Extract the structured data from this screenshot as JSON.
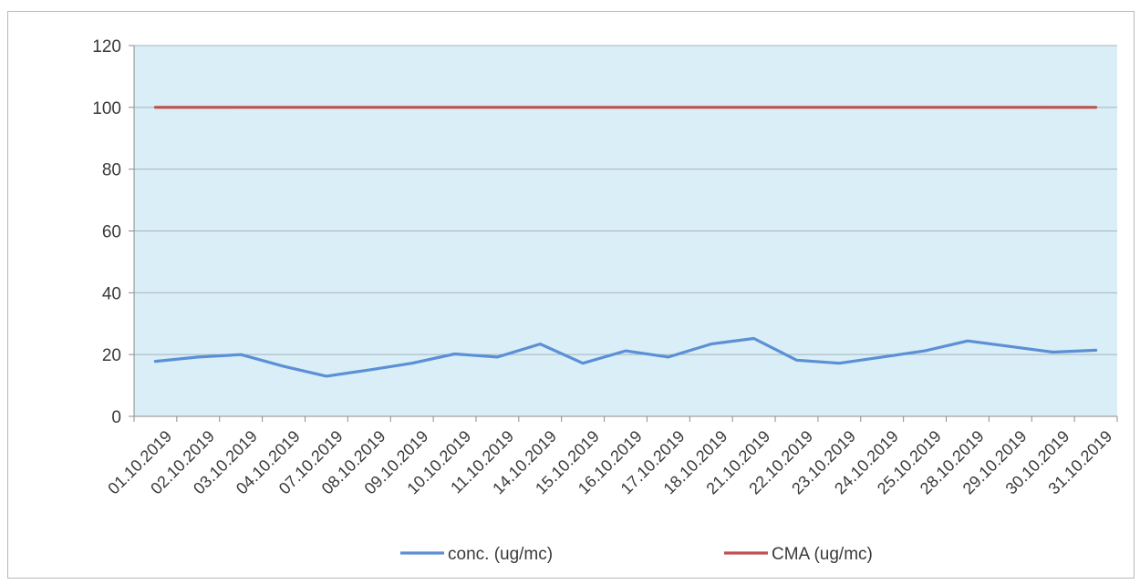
{
  "chart_data": {
    "type": "line",
    "title": "",
    "xlabel": "",
    "ylabel": "",
    "ylim": [
      0,
      120
    ],
    "yticks": [
      0,
      20,
      40,
      60,
      80,
      100,
      120
    ],
    "grid": true,
    "legend_position": "bottom",
    "plot_background": "#d9eef7",
    "categories": [
      "01.10.2019",
      "02.10.2019",
      "03.10.2019",
      "04.10.2019",
      "07.10.2019",
      "08.10.2019",
      "09.10.2019",
      "10.10.2019",
      "11.10.2019",
      "14.10.2019",
      "15.10.2019",
      "16.10.2019",
      "17.10.2019",
      "18.10.2019",
      "21.10.2019",
      "22.10.2019",
      "23.10.2019",
      "24.10.2019",
      "25.10.2019",
      "28.10.2019",
      "29.10.2019",
      "30.10.2019",
      "31.10.2019"
    ],
    "series": [
      {
        "name": "conc. (ug/mc)",
        "color": "#5b8fd6",
        "values": [
          17.8,
          19.2,
          20.0,
          16.2,
          13.0,
          15.0,
          17.2,
          20.2,
          19.2,
          23.4,
          17.2,
          21.2,
          19.2,
          23.4,
          25.2,
          18.2,
          17.2,
          19.2,
          21.2,
          24.4,
          22.6,
          20.8,
          21.4
        ]
      },
      {
        "name": "CMA (ug/mc)",
        "color": "#c0504d",
        "values": [
          100,
          100,
          100,
          100,
          100,
          100,
          100,
          100,
          100,
          100,
          100,
          100,
          100,
          100,
          100,
          100,
          100,
          100,
          100,
          100,
          100,
          100,
          100
        ]
      }
    ]
  }
}
